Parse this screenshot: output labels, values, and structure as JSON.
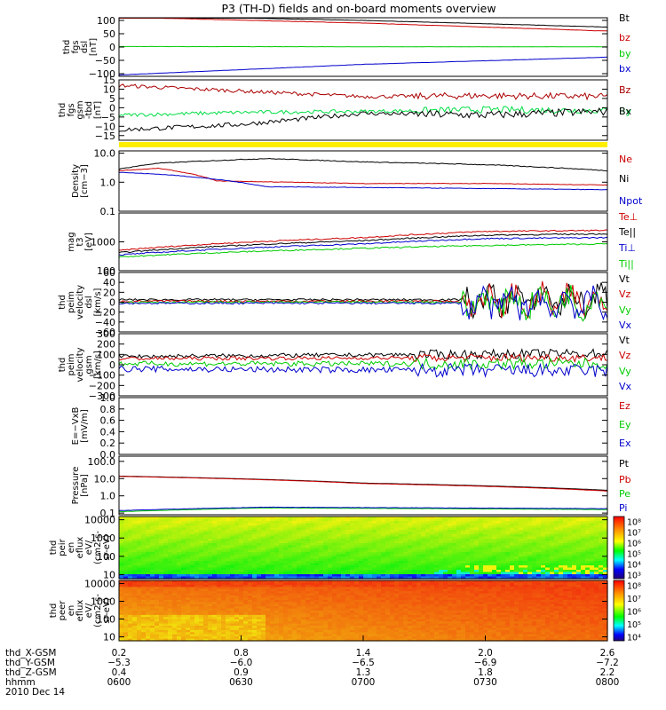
{
  "title": "P3 (TH-D) fields and on-board moments overview",
  "chart_data": [
    {
      "type": "line",
      "panel": "fgs_dsl",
      "ylabel": [
        "thd",
        "fgs",
        "dsl",
        "[nT]"
      ],
      "ylim": [
        -110,
        110
      ],
      "yticks": [
        100,
        50,
        0,
        -50,
        -100
      ],
      "ytick_labels": [
        "100",
        "50",
        "0",
        "−50",
        "−100"
      ],
      "series": [
        {
          "name": "Bt",
          "color": "#000000",
          "x": [
            0,
            0.5,
            1
          ],
          "values": [
            118,
            100,
            75
          ],
          "noise": 0.5
        },
        {
          "name": "bz",
          "color": "#cc0000",
          "x": [
            0,
            0.5,
            1
          ],
          "values": [
            112,
            90,
            60
          ],
          "noise": 0.5
        },
        {
          "name": "by",
          "color": "#00cc00",
          "x": [
            0,
            0.5,
            1
          ],
          "values": [
            2,
            1,
            1
          ],
          "noise": 0.4
        },
        {
          "name": "bx",
          "color": "#0000cc",
          "x": [
            0,
            0.5,
            1
          ],
          "values": [
            -105,
            -65,
            -38
          ],
          "noise": 0.4
        }
      ]
    },
    {
      "type": "line",
      "panel": "fgs_gsm",
      "ylabel": [
        "thd",
        "fgs",
        "gsm",
        "-tbd",
        "[nT]"
      ],
      "ylim": [
        -17.5,
        15
      ],
      "yticks": [
        15,
        10,
        5,
        0,
        -5,
        -10,
        -15
      ],
      "ytick_labels": [
        "15",
        "10",
        "5",
        "0",
        "−5",
        "−10",
        "−15"
      ],
      "series": [
        {
          "name": "Bz",
          "color": "#aa0000",
          "x": [
            0,
            0.25,
            0.5,
            0.75,
            1
          ],
          "values": [
            12,
            9,
            6,
            6.5,
            6
          ],
          "noise": 1.0
        },
        {
          "name": "By",
          "color": "#00dd44",
          "x": [
            0,
            0.25,
            0.5,
            0.75,
            1
          ],
          "values": [
            -4,
            -2.5,
            -2,
            -1,
            -1.5
          ],
          "noise": 1.0
        },
        {
          "name": "Bx",
          "color": "#000000",
          "x": [
            0,
            0.25,
            0.5,
            0.75,
            1
          ],
          "values": [
            -12,
            -9,
            -3,
            -4,
            -2
          ],
          "noise": 1.2
        }
      ]
    },
    {
      "type": "line",
      "panel": "density",
      "log_scale": true,
      "ylabel": [
        "Density",
        "[cm−3]"
      ],
      "ylim": [
        0.1,
        12
      ],
      "yticks": [
        10,
        1,
        0.1
      ],
      "ytick_labels": [
        "10.0",
        "1.0",
        "0.1"
      ],
      "series": [
        {
          "name": "Ne",
          "color": "#cc0000",
          "x": [
            0,
            0.08,
            0.2,
            0.5,
            0.75,
            1
          ],
          "values": [
            2.5,
            3,
            1.1,
            0.9,
            0.9,
            0.8
          ],
          "noise": 0.02
        },
        {
          "name": "Ni",
          "color": "#000000",
          "x": [
            0,
            0.08,
            0.3,
            0.5,
            0.75,
            1
          ],
          "values": [
            2.8,
            4.5,
            6.5,
            5,
            4,
            2.5
          ],
          "noise": 0.03
        },
        {
          "name": "Npot",
          "color": "#0000cc",
          "x": [
            0,
            0.1,
            0.3,
            1
          ],
          "values": [
            2.2,
            1.8,
            0.7,
            0.55
          ],
          "noise": 0.02
        }
      ]
    },
    {
      "type": "line",
      "panel": "temperature",
      "log_scale": true,
      "ylabel": [
        "mag",
        "t3",
        "[eV]"
      ],
      "ylim": [
        100,
        10000
      ],
      "yticks": [
        1000,
        100
      ],
      "ytick_labels": [
        "1000",
        "100"
      ],
      "series": [
        {
          "name": "Te⊥",
          "color": "#cc0000",
          "x": [
            0,
            0.5,
            0.75,
            1
          ],
          "values": [
            500,
            1400,
            2300,
            2500
          ],
          "noise": 0.05
        },
        {
          "name": "Te||",
          "color": "#000000",
          "x": [
            0,
            0.5,
            0.75,
            1
          ],
          "values": [
            420,
            1100,
            1700,
            1900
          ],
          "noise": 0.05
        },
        {
          "name": "Ti⊥",
          "color": "#0000cc",
          "x": [
            0,
            0.5,
            0.75,
            1
          ],
          "values": [
            350,
            850,
            1300,
            1400
          ],
          "noise": 0.05
        },
        {
          "name": "Ti||",
          "color": "#00cc00",
          "x": [
            0,
            0.5,
            0.75,
            1
          ],
          "values": [
            300,
            600,
            750,
            850
          ],
          "noise": 0.05
        }
      ]
    },
    {
      "type": "line",
      "panel": "velocity_dsl",
      "ylabel": [
        "thd",
        "peim",
        "velocity",
        "dsl",
        "[km/s]"
      ],
      "ylim": [
        -60,
        60
      ],
      "yticks": [
        60,
        40,
        20,
        0,
        -20,
        -40,
        -60
      ],
      "ytick_labels": [
        "60",
        "40",
        "20",
        "0",
        "−20",
        "−40",
        "−60"
      ],
      "series": [
        {
          "name": "Vt",
          "color": "#000000",
          "x": [
            0,
            1
          ],
          "values": [
            5,
            5
          ],
          "noise": 2
        },
        {
          "name": "Vz",
          "color": "#cc0000",
          "x": [
            0,
            1
          ],
          "values": [
            2,
            2
          ],
          "noise": 2
        },
        {
          "name": "Vy",
          "color": "#00cc00",
          "x": [
            0,
            1
          ],
          "values": [
            0,
            0
          ],
          "noise": 2
        },
        {
          "name": "Vx",
          "color": "#0000cc",
          "x": [
            0,
            1
          ],
          "values": [
            -2,
            -2
          ],
          "noise": 2
        }
      ]
    },
    {
      "type": "line",
      "panel": "velocity_gsm",
      "ylabel": [
        "thd",
        "peim",
        "velocity",
        "gsm",
        "[km/s]"
      ],
      "ylim": [
        -300,
        300
      ],
      "yticks": [
        300,
        200,
        100,
        0,
        -100,
        -200,
        -300
      ],
      "ytick_labels": [
        "300",
        "200",
        "100",
        "0",
        "−100",
        "−200",
        "−300"
      ],
      "series": [
        {
          "name": "Vt",
          "color": "#000000",
          "x": [
            0,
            1
          ],
          "values": [
            80,
            110
          ],
          "noise": 20
        },
        {
          "name": "Vz",
          "color": "#cc0000",
          "x": [
            0,
            1
          ],
          "values": [
            60,
            70
          ],
          "noise": 18
        },
        {
          "name": "Vy",
          "color": "#00cc00",
          "x": [
            0,
            1
          ],
          "values": [
            10,
            10
          ],
          "noise": 25
        },
        {
          "name": "Vx",
          "color": "#0000cc",
          "x": [
            0,
            1
          ],
          "values": [
            -40,
            -60
          ],
          "noise": 30
        }
      ]
    },
    {
      "type": "line",
      "panel": "efield",
      "ylabel": [
        "E=−VxB",
        "[mV/m]"
      ],
      "ylim": [
        0,
        1
      ],
      "yticks": [
        1,
        0.8,
        0.6,
        0.4,
        0.2,
        0
      ],
      "ytick_labels": [
        "1.0",
        "0.8",
        "0.6",
        "0.4",
        "0.2",
        "0.0"
      ],
      "series": [
        {
          "name": "Ez",
          "color": "#cc0000",
          "values": []
        },
        {
          "name": "Ey",
          "color": "#00cc00",
          "values": []
        },
        {
          "name": "Ex",
          "color": "#0000cc",
          "values": []
        }
      ]
    },
    {
      "type": "line",
      "panel": "pressure",
      "log_scale": true,
      "ylabel": [
        "Pressure",
        "[nPa]"
      ],
      "ylim": [
        0.08,
        200
      ],
      "yticks": [
        100,
        10,
        1,
        0.1
      ],
      "ytick_labels": [
        "100.0",
        "10.0",
        "1.0",
        "0.1"
      ],
      "series": [
        {
          "name": "Pt",
          "color": "#000000",
          "x": [
            0,
            0.5,
            1
          ],
          "values": [
            14,
            5.5,
            2.1
          ],
          "noise": 0.005
        },
        {
          "name": "Pb",
          "color": "#cc0000",
          "x": [
            0,
            0.5,
            1
          ],
          "values": [
            13.5,
            5.2,
            1.9
          ],
          "noise": 0.005
        },
        {
          "name": "Pe",
          "color": "#00cc00",
          "x": [
            0,
            0.3,
            1
          ],
          "values": [
            0.12,
            0.2,
            0.16
          ],
          "noise": 0.02
        },
        {
          "name": "Pi",
          "color": "#0000cc",
          "x": [
            0,
            0.3,
            1
          ],
          "values": [
            0.14,
            0.22,
            0.18
          ],
          "noise": 0.02
        }
      ]
    },
    {
      "type": "heatmap",
      "panel": "ion_spectrogram",
      "log_scale": true,
      "ylabel": [
        "thd",
        "peir",
        "en",
        "eflux",
        "eV/",
        "(cm2-s-",
        "sr-eV)"
      ],
      "ylim": [
        6,
        15000
      ],
      "yticks": [
        10000,
        1000,
        100,
        10
      ],
      "ytick_labels": [
        "10000",
        "1000",
        "100",
        "10"
      ],
      "colorbar": {
        "ticks": [
          "10⁸",
          "10⁷",
          "10⁶",
          "10⁵",
          "10⁴",
          "10³"
        ]
      }
    },
    {
      "type": "heatmap",
      "panel": "electron_spectrogram",
      "log_scale": true,
      "ylabel": [
        "thd",
        "peer",
        "en",
        "eflux",
        "eV/",
        "(cm2-s-",
        "sr-eV)"
      ],
      "ylim": [
        6,
        15000
      ],
      "yticks": [
        10000,
        1000,
        100,
        10
      ],
      "ytick_labels": [
        "10000",
        "1000",
        "100",
        "10"
      ],
      "colorbar": {
        "ticks": [
          "10⁸",
          "10⁷",
          "10⁶",
          "10⁵",
          "10⁴"
        ]
      }
    }
  ],
  "x_axis": {
    "rows": [
      {
        "label": "thd_X-GSM",
        "values": [
          "0.2",
          "0.8",
          "1.4",
          "2.0",
          "2.6"
        ]
      },
      {
        "label": "thd_Y-GSM",
        "values": [
          "−5.3",
          "−6.0",
          "−6.5",
          "−6.9",
          "−7.2"
        ]
      },
      {
        "label": "thd_Z-GSM",
        "values": [
          "0.4",
          "0.9",
          "1.3",
          "1.8",
          "2.2"
        ]
      },
      {
        "label": "hhmm",
        "values": [
          "0600",
          "0630",
          "0700",
          "0730",
          "0800"
        ]
      }
    ],
    "date": "2010 Dec 14"
  }
}
